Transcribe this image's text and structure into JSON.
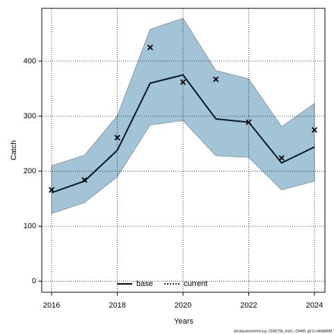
{
  "chart_data": {
    "type": "line",
    "xlabel": "Years",
    "ylabel": "Catch",
    "footer": "stockassessment.org, LEM275b_trial1, r19408, git:1cc464b806f",
    "x": [
      2016,
      2017,
      2018,
      2019,
      2020,
      2021,
      2022,
      2023,
      2024
    ],
    "xlim": [
      2015.7,
      2024.32
    ],
    "xticks": [
      2016,
      2018,
      2020,
      2022,
      2024
    ],
    "ylim": [
      -20,
      496
    ],
    "yticks": [
      0,
      100,
      200,
      300,
      400
    ],
    "grid": true,
    "band": {
      "color": "#a3c4d6",
      "upper": [
        210,
        229,
        301,
        458,
        478,
        383,
        368,
        281,
        323
      ],
      "lower": [
        123,
        143,
        190,
        284,
        292,
        228,
        225,
        166,
        182
      ]
    },
    "series": [
      {
        "name": "base",
        "color": "#000000",
        "dash": "solid",
        "values": [
          161,
          182,
          238,
          360,
          375,
          295,
          289,
          215,
          244
        ]
      },
      {
        "name": "current",
        "color": "#0b2e4a",
        "dash": "dotted",
        "values": [
          161,
          182,
          238,
          360,
          375,
          295,
          289,
          215,
          244
        ]
      }
    ],
    "points": {
      "color": "#000000",
      "values": [
        166,
        184,
        261,
        425,
        362,
        367,
        289,
        224,
        275
      ]
    },
    "legend": "bottom"
  }
}
